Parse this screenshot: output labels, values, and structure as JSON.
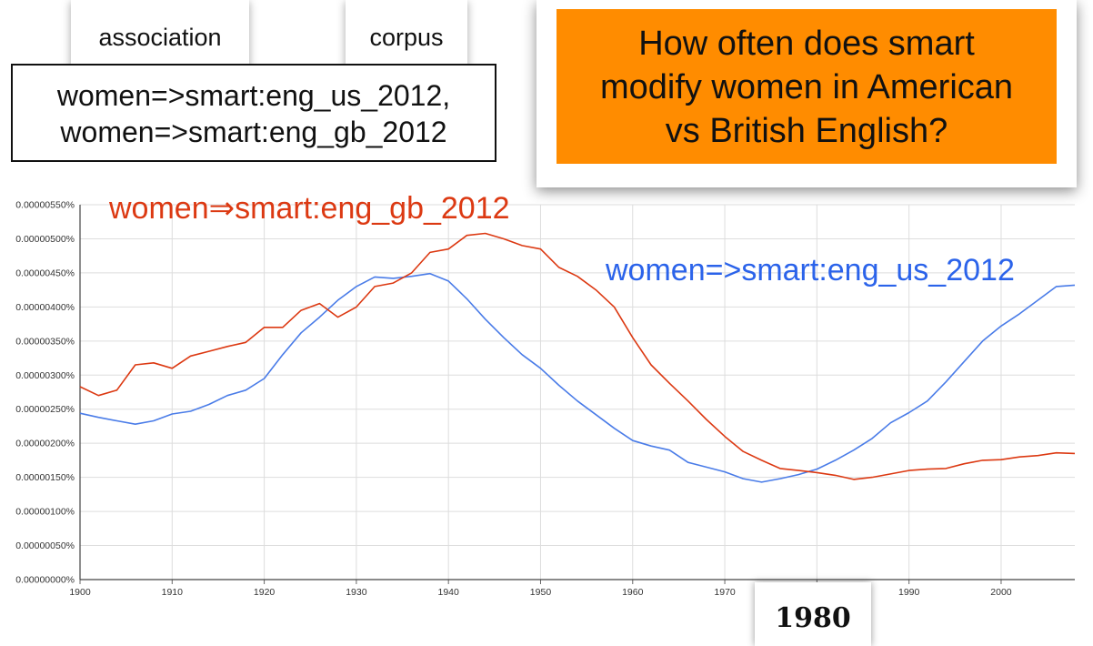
{
  "tabs": {
    "association": "association",
    "corpus": "corpus"
  },
  "query": {
    "line1": "women=>smart:eng_us_2012,",
    "line2": "women=>smart:eng_gb_2012"
  },
  "question": {
    "line1": "How often does smart",
    "line2": "modify women in American",
    "line3": "vs British English?"
  },
  "callout_year": "1980",
  "chart_data": {
    "type": "line",
    "x_range": [
      1900,
      2008
    ],
    "ylim": [
      0,
      5.5e-06
    ],
    "y_ticks": [
      "0.00000000%",
      "0.00000050%",
      "0.00000100%",
      "0.00000150%",
      "0.00000200%",
      "0.00000250%",
      "0.00000300%",
      "0.00000350%",
      "0.00000400%",
      "0.00000450%",
      "0.00000500%",
      "0.00000550%"
    ],
    "x_ticks": [
      "1900",
      "1910",
      "1920",
      "1930",
      "1940",
      "1950",
      "1960",
      "1970",
      "1980",
      "1990",
      "2000"
    ],
    "grid": true,
    "series": [
      {
        "name": "women=>smart:eng_us_2012",
        "color": "#4a7ce8",
        "points": [
          [
            1900,
            2.44
          ],
          [
            1902,
            2.38
          ],
          [
            1904,
            2.33
          ],
          [
            1906,
            2.28
          ],
          [
            1908,
            2.33
          ],
          [
            1910,
            2.43
          ],
          [
            1912,
            2.47
          ],
          [
            1914,
            2.57
          ],
          [
            1916,
            2.7
          ],
          [
            1918,
            2.78
          ],
          [
            1920,
            2.95
          ],
          [
            1922,
            3.3
          ],
          [
            1924,
            3.62
          ],
          [
            1926,
            3.85
          ],
          [
            1928,
            4.1
          ],
          [
            1930,
            4.3
          ],
          [
            1932,
            4.44
          ],
          [
            1934,
            4.42
          ],
          [
            1936,
            4.45
          ],
          [
            1938,
            4.49
          ],
          [
            1940,
            4.38
          ],
          [
            1942,
            4.12
          ],
          [
            1944,
            3.82
          ],
          [
            1946,
            3.55
          ],
          [
            1948,
            3.3
          ],
          [
            1950,
            3.1
          ],
          [
            1952,
            2.85
          ],
          [
            1954,
            2.62
          ],
          [
            1956,
            2.42
          ],
          [
            1958,
            2.22
          ],
          [
            1960,
            2.04
          ],
          [
            1962,
            1.96
          ],
          [
            1964,
            1.9
          ],
          [
            1966,
            1.72
          ],
          [
            1968,
            1.65
          ],
          [
            1970,
            1.58
          ],
          [
            1972,
            1.48
          ],
          [
            1974,
            1.43
          ],
          [
            1976,
            1.48
          ],
          [
            1978,
            1.54
          ],
          [
            1980,
            1.62
          ],
          [
            1982,
            1.75
          ],
          [
            1984,
            1.9
          ],
          [
            1986,
            2.07
          ],
          [
            1988,
            2.3
          ],
          [
            1990,
            2.45
          ],
          [
            1992,
            2.62
          ],
          [
            1994,
            2.9
          ],
          [
            1996,
            3.2
          ],
          [
            1998,
            3.5
          ],
          [
            2000,
            3.72
          ],
          [
            2002,
            3.9
          ],
          [
            2004,
            4.1
          ],
          [
            2006,
            4.3
          ],
          [
            2008,
            4.32
          ]
        ]
      },
      {
        "name": "women⇒smart:eng_gb_2012",
        "color": "#dc3912",
        "points": [
          [
            1900,
            2.83
          ],
          [
            1902,
            2.7
          ],
          [
            1904,
            2.78
          ],
          [
            1906,
            3.15
          ],
          [
            1908,
            3.18
          ],
          [
            1910,
            3.1
          ],
          [
            1912,
            3.28
          ],
          [
            1914,
            3.35
          ],
          [
            1916,
            3.42
          ],
          [
            1918,
            3.48
          ],
          [
            1920,
            3.7
          ],
          [
            1922,
            3.7
          ],
          [
            1924,
            3.95
          ],
          [
            1926,
            4.05
          ],
          [
            1928,
            3.85
          ],
          [
            1930,
            4.0
          ],
          [
            1932,
            4.3
          ],
          [
            1934,
            4.35
          ],
          [
            1936,
            4.5
          ],
          [
            1938,
            4.8
          ],
          [
            1940,
            4.85
          ],
          [
            1942,
            5.05
          ],
          [
            1944,
            5.08
          ],
          [
            1946,
            5.0
          ],
          [
            1948,
            4.9
          ],
          [
            1950,
            4.85
          ],
          [
            1952,
            4.58
          ],
          [
            1954,
            4.45
          ],
          [
            1956,
            4.25
          ],
          [
            1958,
            4.0
          ],
          [
            1960,
            3.55
          ],
          [
            1962,
            3.15
          ],
          [
            1964,
            2.88
          ],
          [
            1966,
            2.62
          ],
          [
            1968,
            2.35
          ],
          [
            1970,
            2.1
          ],
          [
            1972,
            1.88
          ],
          [
            1974,
            1.75
          ],
          [
            1976,
            1.63
          ],
          [
            1978,
            1.6
          ],
          [
            1980,
            1.57
          ],
          [
            1982,
            1.53
          ],
          [
            1984,
            1.47
          ],
          [
            1986,
            1.5
          ],
          [
            1988,
            1.55
          ],
          [
            1990,
            1.6
          ],
          [
            1992,
            1.62
          ],
          [
            1994,
            1.63
          ],
          [
            1996,
            1.7
          ],
          [
            1998,
            1.75
          ],
          [
            2000,
            1.76
          ],
          [
            2002,
            1.8
          ],
          [
            2004,
            1.82
          ],
          [
            2006,
            1.86
          ],
          [
            2008,
            1.85
          ]
        ]
      }
    ]
  }
}
